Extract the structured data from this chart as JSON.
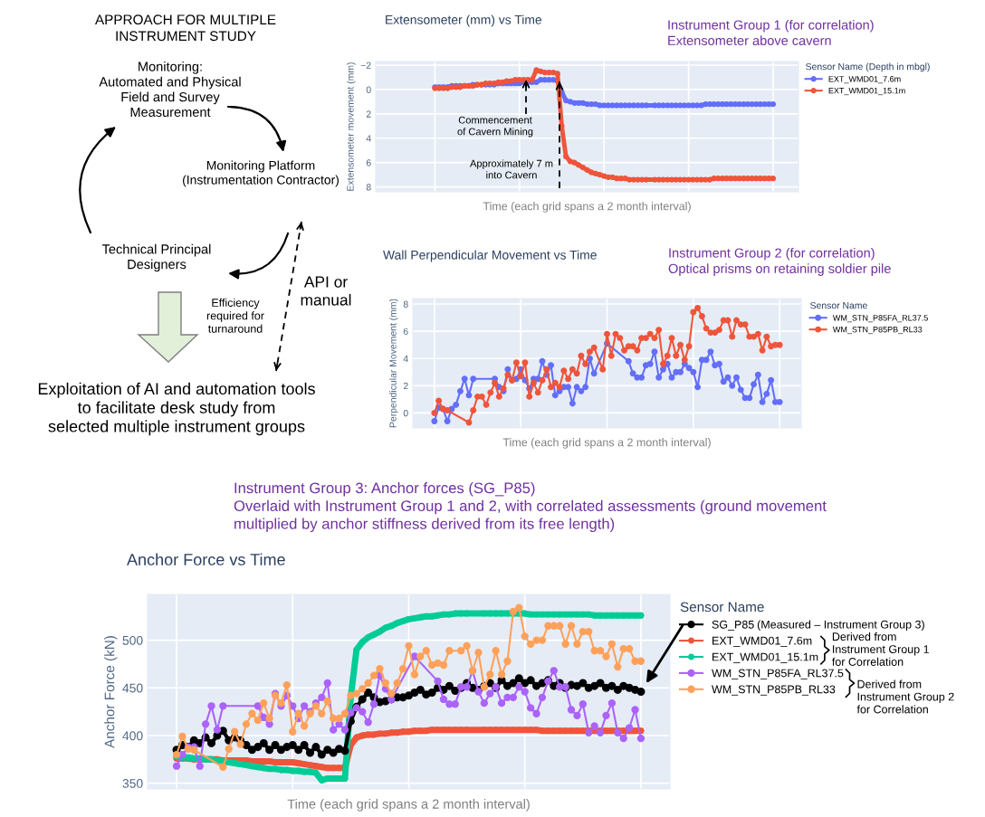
{
  "chart_data": [
    {
      "type": "other",
      "title": "APPROACH FOR MULTIPLE\nINSTRUMENT STUDY",
      "annotations": [
        "Monitoring:\nAutomated and Physical\nField and Survey\nMeasurement",
        "Monitoring Platform\n(Instrumentation Contractor)",
        "Technical Principal\nDesigners",
        "Efficiency\nrequired for\nturnaround",
        "API or\nmanual",
        "Exploitation of AI and automation tools\nto facilitate desk study from\nselected multiple instrument groups"
      ]
    },
    {
      "type": "line",
      "title": "Extensometer (mm) vs Time",
      "subtitle": "Instrument Group 1 (for correlation)\nExtensometer above cavern",
      "xlabel": "Time (each grid spans a 2 month interval)",
      "ylabel": "Extensometer movement (mm)",
      "legend_title": "Sensor Name (Depth in mbgl)",
      "ylim": [
        8.4,
        -2.3
      ],
      "yticks": [
        {
          "value": -2,
          "label": "−2"
        },
        0,
        2,
        4,
        6,
        8
      ],
      "tick_labels": "y",
      "grid": true,
      "legend": "right",
      "marker": "circle",
      "categories": [
        null,
        null,
        null,
        null,
        null,
        null,
        null,
        null,
        null,
        null,
        null,
        null,
        null,
        null,
        null,
        null,
        null,
        null,
        null,
        null,
        null,
        null,
        null,
        null,
        null,
        null,
        null,
        null,
        null,
        null,
        null,
        null,
        null,
        null,
        null,
        null,
        null,
        null,
        null,
        null,
        null,
        null,
        null,
        null,
        null,
        null,
        null,
        null,
        null,
        null,
        null,
        null,
        null,
        null,
        null,
        null,
        null,
        null,
        null,
        null,
        null,
        null,
        null,
        null,
        null,
        null,
        null,
        null,
        null,
        null,
        null,
        null,
        null,
        null,
        null,
        null,
        null,
        null,
        null,
        null,
        null
      ],
      "series": [
        {
          "name": "EXT_WMD01_7.6m",
          "color": "#636efa",
          "values": [
            -0.2,
            -0.2,
            -0.2,
            -0.2,
            -0.3,
            -0.3,
            -0.3,
            -0.3,
            -0.3,
            -0.4,
            -0.4,
            -0.4,
            -0.4,
            -0.4,
            -0.4,
            -0.5,
            -0.5,
            -0.5,
            -0.5,
            -0.5,
            -0.5,
            -0.6,
            -0.6,
            -0.6,
            -0.6,
            -0.8,
            -0.8,
            -0.8,
            -0.8,
            -0.7,
            0.2,
            0.9,
            1.0,
            1.1,
            1.1,
            1.1,
            1.2,
            1.2,
            1.2,
            1.3,
            1.3,
            1.3,
            1.3,
            1.3,
            1.3,
            1.3,
            1.3,
            1.3,
            1.3,
            1.3,
            1.3,
            null,
            1.3,
            1.3,
            1.3,
            1.3,
            1.3,
            1.3,
            1.3,
            1.3,
            1.3,
            1.3,
            1.3,
            1.3,
            1.2,
            1.2,
            1.2,
            1.2,
            1.2,
            1.2,
            1.2,
            1.2,
            1.2,
            1.2,
            1.2,
            1.2,
            1.2,
            1.2,
            1.2,
            1.2,
            1.2
          ]
        },
        {
          "name": "EXT_WMD01_15.1m",
          "color": "#ef553b",
          "values": [
            -0.1,
            -0.1,
            -0.1,
            -0.1,
            -0.2,
            -0.2,
            -0.2,
            -0.3,
            -0.3,
            -0.3,
            -0.4,
            -0.4,
            -0.5,
            -0.5,
            -0.5,
            -0.6,
            -0.6,
            -0.7,
            -0.7,
            -0.8,
            -0.8,
            -0.8,
            -0.8,
            -0.8,
            -1.6,
            -1.5,
            -1.4,
            -1.4,
            -1.4,
            -1.3,
            3.0,
            5.5,
            5.9,
            6.0,
            6.2,
            6.4,
            6.6,
            6.8,
            6.9,
            7.0,
            7.1,
            7.2,
            7.2,
            7.3,
            7.3,
            7.3,
            7.4,
            7.4,
            7.4,
            7.4,
            7.4,
            null,
            7.4,
            7.4,
            7.4,
            7.4,
            7.4,
            7.4,
            7.4,
            7.4,
            7.4,
            7.4,
            7.4,
            7.4,
            7.4,
            7.4,
            7.3,
            7.3,
            7.3,
            7.3,
            7.3,
            7.3,
            7.3,
            7.3,
            7.3,
            7.3,
            7.3,
            7.3,
            7.3,
            7.3,
            7.3
          ]
        }
      ],
      "annotations": [
        "Commencement\nof Cavern Mining",
        "Approximately 7 m\ninto Cavern"
      ]
    },
    {
      "type": "line",
      "title": "Wall Perpendicular Movement vs Time",
      "subtitle": "Instrument Group 2 (for correlation)\nOptical prisms on retaining soldier pile",
      "xlabel": "Time (each grid spans a 2 month interval)",
      "ylabel": "Perpendicular Movement (mm)",
      "legend_title": "Sensor Name",
      "ylim": [
        -1.1,
        8.4
      ],
      "yticks": [
        0,
        2,
        4,
        6,
        8
      ],
      "tick_labels": "y",
      "grid": true,
      "legend": "right",
      "marker": "circle",
      "categories": [
        null,
        null,
        null,
        null,
        null,
        null,
        null,
        null,
        null,
        null,
        null,
        null,
        null,
        null,
        null,
        null,
        null,
        null,
        null,
        null,
        null,
        null,
        null,
        null,
        null,
        null,
        null,
        null,
        null,
        null,
        null,
        null,
        null,
        null,
        null,
        null,
        null,
        null,
        null,
        null,
        null,
        null,
        null,
        null,
        null,
        null,
        null,
        null,
        null,
        null,
        null,
        null,
        null,
        null,
        null,
        null,
        null,
        null,
        null,
        null,
        null,
        null,
        null,
        null,
        null,
        null,
        null,
        null,
        null,
        null,
        null,
        null,
        null,
        null,
        null,
        null,
        null,
        null,
        null,
        null,
        null
      ],
      "series": [
        {
          "name": "WM_STN_P85FA_RL37.5",
          "color": "#636efa",
          "values": [
            -0.6,
            0.4,
            0.3,
            -0.6,
            0.3,
            0.6,
            1.6,
            2.5,
            1.3,
            2.5,
            null,
            null,
            null,
            null,
            2.5,
            1.9,
            1.6,
            3.2,
            2.4,
            2.5,
            3.2,
            2.4,
            1.8,
            2.5,
            2.5,
            3.8,
            2.8,
            3.5,
            1.3,
            1.6,
            1.9,
            1.9,
            0.7,
            1.9,
            1.6,
            1.9,
            4.0,
            2.9,
            null,
            null,
            5.1,
            null,
            null,
            null,
            null,
            3.8,
            2.9,
            2.6,
            2.6,
            3.5,
            3.6,
            4.5,
            2.6,
            3.2,
            3.6,
            2.6,
            3.0,
            3.0,
            3.6,
            3.3,
            3.0,
            1.9,
            3.9,
            3.9,
            4.5,
            3.5,
            3.6,
            2.3,
            2.6,
            2.0,
            2.6,
            1.7,
            1.1,
            1.1,
            2.1,
            2.8,
            0.8,
            1.4,
            2.4,
            0.8,
            0.8
          ]
        },
        {
          "name": "WM_STN_P85PB_RL33",
          "color": "#ef553b",
          "values": [
            0.0,
            0.9,
            0.3,
            0.2,
            null,
            null,
            null,
            null,
            -0.7,
            0.2,
            1.2,
            1.2,
            0.6,
            1.5,
            2.2,
            1.2,
            1.8,
            2.8,
            2.4,
            3.7,
            2.7,
            3.7,
            1.2,
            2.2,
            1.5,
            2.4,
            3.2,
            1.9,
            2.2,
            1.9,
            3.1,
            2.5,
            3.2,
            2.9,
            4.2,
            3.6,
            4.5,
            4.8,
            null,
            3.2,
            5.8,
            4.2,
            5.8,
            5.5,
            4.6,
            4.9,
            4.9,
            4.6,
            5.5,
            5.5,
            5.8,
            5.5,
            6.1,
            3.6,
            4.2,
            5.5,
            4.2,
            5.0,
            3.9,
            4.9,
            7.4,
            7.7,
            7.1,
            6.2,
            5.9,
            5.9,
            6.1,
            6.8,
            6.8,
            5.6,
            6.8,
            6.5,
            6.5,
            5.6,
            5.6,
            5.8,
            4.6,
            5.6,
            4.9,
            5.0,
            5.0
          ]
        }
      ]
    },
    {
      "type": "line",
      "title": "Anchor Force vs Time",
      "subtitle": "Instrument Group 3: Anchor forces (SG_P85)\nOverlaid with Instrument Group 1 and 2, with correlated assessments (ground movement\nmultiplied by anchor stiffness derived from its free length)",
      "xlabel": "Time (each grid spans a 2 month interval)",
      "ylabel": "Anchor Force (kN)",
      "legend_title": "Sensor Name",
      "ylim": [
        344,
        548
      ],
      "yticks": [
        350,
        400,
        450,
        500
      ],
      "tick_labels": "y",
      "grid": true,
      "legend": "right",
      "marker": "circle",
      "categories": [
        null,
        null,
        null,
        null,
        null,
        null,
        null,
        null,
        null,
        null,
        null,
        null,
        null,
        null,
        null,
        null,
        null,
        null,
        null,
        null,
        null,
        null,
        null,
        null,
        null,
        null,
        null,
        null,
        null,
        null,
        null,
        null,
        null,
        null,
        null,
        null,
        null,
        null,
        null,
        null,
        null,
        null,
        null,
        null,
        null,
        null,
        null,
        null,
        null,
        null,
        null,
        null,
        null,
        null,
        null,
        null,
        null,
        null,
        null,
        null,
        null,
        null,
        null,
        null,
        null,
        null,
        null,
        null,
        null,
        null,
        null,
        null,
        null,
        null,
        null,
        null,
        null,
        null,
        null,
        null,
        null
      ],
      "series": [
        {
          "name": "SG_P85",
          "color": "#000000",
          "values": [
            385,
            390,
            388,
            395,
            392,
            398,
            392,
            400,
            405,
            395,
            398,
            395,
            390,
            385,
            388,
            392,
            385,
            390,
            385,
            388,
            390,
            385,
            390,
            382,
            388,
            380,
            385,
            382,
            386,
            384,
            415,
            430,
            438,
            445,
            440,
            435,
            436,
            438,
            440,
            440,
            442,
            445,
            448,
            443,
            445,
            450,
            448,
            452,
            447,
            450,
            455,
            450,
            448,
            452,
            455,
            450,
            458,
            452,
            455,
            460,
            455,
            458,
            452,
            455,
            458,
            452,
            455,
            450,
            453,
            452,
            455,
            450,
            452,
            455,
            450,
            452,
            448,
            452,
            450,
            448,
            446
          ]
        },
        {
          "name": "EXT_WMD01_7.6m",
          "color": "#ef553b",
          "values": [
            376,
            376,
            376,
            375,
            375,
            375,
            375,
            375,
            374,
            374,
            374,
            374,
            374,
            373,
            373,
            373,
            373,
            372,
            372,
            372,
            372,
            371,
            370,
            369,
            368,
            367,
            366,
            366,
            366,
            366,
            390,
            398,
            400,
            401,
            401,
            402,
            402,
            403,
            403,
            404,
            404,
            405,
            405,
            405,
            406,
            406,
            406,
            406,
            406,
            406,
            406,
            null,
            null,
            406,
            406,
            406,
            406,
            406,
            406,
            406,
            406,
            406,
            406,
            405,
            405,
            405,
            405,
            405,
            405,
            405,
            405,
            405,
            405,
            405,
            405,
            405,
            405,
            405,
            405,
            405,
            405
          ]
        },
        {
          "name": "EXT_WMD01_15.1m",
          "color": "#00cc96",
          "values": [
            378,
            377,
            377,
            376,
            376,
            375,
            375,
            374,
            373,
            372,
            371,
            370,
            369,
            368,
            367,
            366,
            365,
            365,
            364,
            364,
            363,
            363,
            362,
            362,
            361,
            353,
            355,
            355,
            355,
            355,
            440,
            490,
            498,
            503,
            506,
            509,
            513,
            515,
            518,
            520,
            522,
            523,
            524,
            525,
            525,
            526,
            527,
            527,
            528,
            528,
            528,
            null,
            null,
            528,
            528,
            528,
            528,
            528,
            528,
            528,
            528,
            527,
            527,
            527,
            527,
            527,
            527,
            527,
            527,
            527,
            527,
            527,
            526,
            526,
            526,
            526,
            526,
            526,
            526,
            526,
            526
          ]
        },
        {
          "name": "WM_STN_P85FA_RL37.5",
          "color": "#ab63fa",
          "values": [
            368,
            380,
            388,
            388,
            368,
            412,
            431,
            406,
            431,
            null,
            null,
            null,
            null,
            null,
            431,
            419,
            412,
            444,
            431,
            442,
            431,
            418,
            431,
            425,
            434,
            440,
            455,
            406,
            412,
            406,
            424,
            429,
            425,
            414,
            433,
            463,
            449,
            438,
            null,
            null,
            null,
            483,
            null,
            null,
            null,
            457,
            438,
            433,
            433,
            451,
            451,
            468,
            446,
            434,
            444,
            451,
            434,
            440,
            440,
            451,
            446,
            429,
            423,
            440,
            457,
            468,
            451,
            451,
            427,
            421,
            433,
            403,
            410,
            403,
            421,
            434,
            403,
            397,
            408,
            427,
            397
          ]
        },
        {
          "name": "WM_STN_P85PB_RL33",
          "color": "#ffa15a",
          "values": [
            380,
            399,
            386,
            385,
            null,
            null,
            null,
            null,
            367,
            386,
            404,
            391,
            412,
            423,
            416,
            434,
            418,
            442,
            434,
            453,
            404,
            423,
            410,
            423,
            431,
            423,
            436,
            418,
            418,
            423,
            442,
            444,
            449,
            455,
            463,
            470,
            455,
            444,
            455,
            470,
            494,
            464,
            483,
            489,
            474,
            476,
            474,
            489,
            null,
            489,
            494,
            468,
            487,
            451,
            464,
            489,
            464,
            478,
            530,
            534,
            504,
            496,
            500,
            500,
            515,
            515,
            515,
            496,
            515,
            496,
            509,
            509,
            489,
            489,
            483,
            496,
            472,
            491,
            491,
            478,
            478
          ]
        }
      ],
      "annotations": [
        "(Measured – Instrument Group 3)",
        "Derived from\nInstrument Group 1\nfor Correlation",
        "Derived from\nInstrument Group 2\nfor Correlation"
      ]
    }
  ]
}
